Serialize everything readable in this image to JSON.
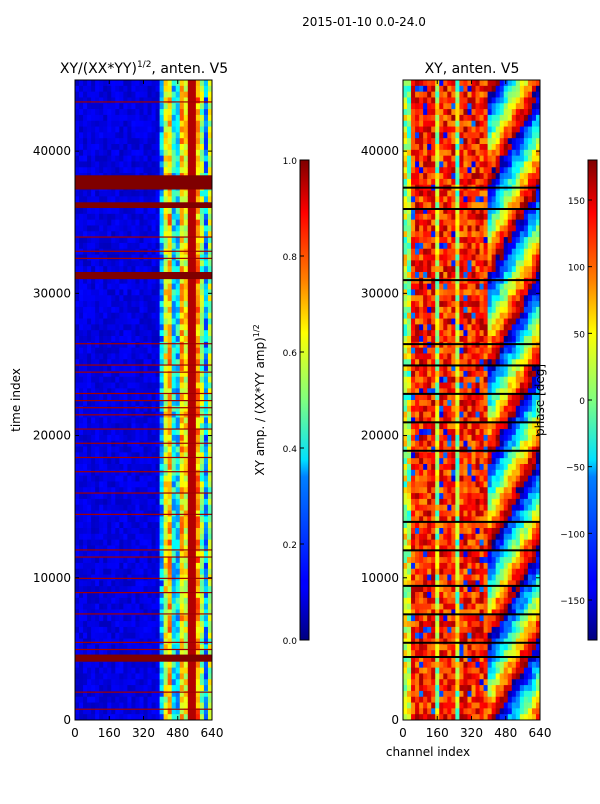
{
  "figure": {
    "suptitle": "2015-01-10 0.0-24.0"
  },
  "chart_data": [
    {
      "type": "heatmap",
      "title_main": "XY/(XX*YY)",
      "title_exp": "1/2",
      "title_rest": ", anten. V5",
      "xlabel": "",
      "ylabel": "time index",
      "xlim": [
        0,
        640
      ],
      "ylim": [
        0,
        45000
      ],
      "xticks": [
        0,
        160,
        320,
        480,
        640
      ],
      "yticks": [
        0,
        10000,
        20000,
        30000,
        40000
      ],
      "colorbar": {
        "label_main": "XY amp. / (XX*YY amp)",
        "label_exp": "1/2",
        "range": [
          0.0,
          1.0
        ],
        "ticks": [
          "0.0",
          "0.2",
          "0.4",
          "0.6",
          "0.8",
          "1.0"
        ],
        "colormap": "jet"
      },
      "flagged_rows_major": [
        [
          37300,
          38300
        ],
        [
          36000,
          36400
        ],
        [
          31000,
          31500
        ],
        [
          4100,
          4600
        ]
      ],
      "flagged_rows_minor": [
        43500,
        34000,
        33000,
        32500,
        26500,
        25000,
        24500,
        23000,
        22500,
        22000,
        21500,
        20500,
        19500,
        18500,
        17500,
        16000,
        14500,
        12000,
        11500,
        10000,
        9000,
        7500,
        5500,
        5000,
        2000,
        800
      ],
      "signal_channel_range": [
        400,
        640
      ],
      "notes": "Baseline amplitude ~0.05–0.15 (dark blue); bright structure 0.3–0.8 in channels 420–620; flagged time rows saturate at 1.0 (dark red)."
    },
    {
      "type": "heatmap",
      "title": "XY, anten. V5",
      "xlabel": "channel index",
      "ylabel": "",
      "xlim": [
        0,
        640
      ],
      "ylim": [
        0,
        45000
      ],
      "xticks": [
        0,
        160,
        320,
        480,
        640
      ],
      "yticks": [
        0,
        10000,
        20000,
        30000,
        40000
      ],
      "colorbar": {
        "label": "phase [deg]",
        "range": [
          -180,
          180
        ],
        "ticks": [
          "−150",
          "−100",
          "−50",
          "0",
          "50",
          "100",
          "150"
        ],
        "colormap": "jet"
      },
      "flagged_rows": [
        37500,
        36000,
        31000,
        26500,
        25000,
        23000,
        21000,
        19000,
        14000,
        12000,
        9500,
        7500,
        5500,
        4500
      ],
      "notes": "Phase mostly +50 to +150 deg (orange/red) in channels 0–400, wrapping pattern in channels 400–640; black flagged rows."
    }
  ]
}
